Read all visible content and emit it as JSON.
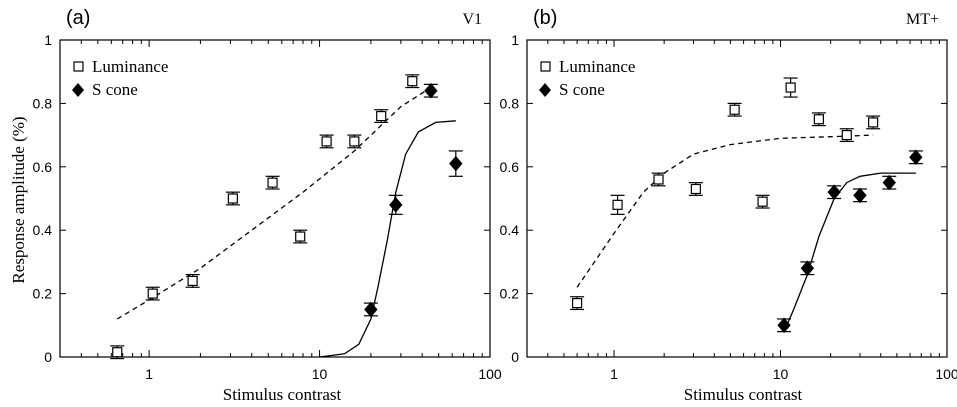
{
  "figure": {
    "ylabel": "Response amplitude (%)",
    "xlabel": "Stimulus contrast"
  },
  "chart_data": [
    {
      "type": "scatter",
      "panel_label": "(a)",
      "region_label": "V1",
      "xlabel": "Stimulus contrast",
      "ylabel": "Response amplitude (%)",
      "xscale": "log",
      "xlim": [
        0.3,
        100
      ],
      "ylim": [
        0,
        1
      ],
      "xticks": [
        1,
        10,
        100
      ],
      "xtick_labels": [
        "1",
        "10",
        "100"
      ],
      "yticks": [
        0,
        0.2,
        0.4,
        0.6,
        0.8,
        1
      ],
      "ytick_labels": [
        "0",
        "0.2",
        "0.4",
        "0.6",
        "0.8",
        "1"
      ],
      "legend": "top-left",
      "series": [
        {
          "name": "Luminance",
          "marker": "open-square",
          "x": [
            0.65,
            1.05,
            1.8,
            3.1,
            5.3,
            7.7,
            11,
            16,
            23,
            35
          ],
          "y": [
            0.015,
            0.2,
            0.24,
            0.5,
            0.55,
            0.38,
            0.68,
            0.68,
            0.76,
            0.87
          ],
          "err": [
            0.02,
            0.02,
            0.02,
            0.02,
            0.02,
            0.02,
            0.02,
            0.02,
            0.02,
            0.02
          ],
          "fit": {
            "style": "dashed",
            "x": [
              0.65,
              1,
              2,
              4,
              8,
              16,
              30,
              45
            ],
            "y": [
              0.12,
              0.18,
              0.28,
              0.4,
              0.52,
              0.65,
              0.79,
              0.85
            ]
          }
        },
        {
          "name": "S cone",
          "marker": "filled-diamond",
          "x": [
            20,
            28,
            45,
            63
          ],
          "y": [
            0.15,
            0.48,
            0.84,
            0.61
          ],
          "err": [
            0.02,
            0.03,
            0.02,
            0.04
          ],
          "fit": {
            "style": "solid",
            "x": [
              10,
              14,
              17,
              20,
              22,
              25,
              28,
              32,
              38,
              48,
              63
            ],
            "y": [
              0.0,
              0.01,
              0.04,
              0.12,
              0.22,
              0.37,
              0.52,
              0.64,
              0.71,
              0.74,
              0.745
            ]
          }
        }
      ]
    },
    {
      "type": "scatter",
      "panel_label": "(b)",
      "region_label": "MT+",
      "xlabel": "Stimulus contrast",
      "ylabel": "",
      "xscale": "log",
      "xlim": [
        0.3,
        100
      ],
      "ylim": [
        0,
        1
      ],
      "xticks": [
        1,
        10,
        100
      ],
      "xtick_labels": [
        "1",
        "10",
        "100"
      ],
      "yticks": [
        0,
        0.2,
        0.4,
        0.6,
        0.8,
        1
      ],
      "ytick_labels": [
        "0",
        "0.2",
        "0.4",
        "0.6",
        "0.8",
        "1"
      ],
      "legend": "top-left",
      "series": [
        {
          "name": "Luminance",
          "marker": "open-square",
          "x": [
            0.6,
            1.05,
            1.85,
            3.1,
            5.3,
            7.8,
            11.5,
            17,
            25,
            36
          ],
          "y": [
            0.17,
            0.48,
            0.56,
            0.53,
            0.78,
            0.49,
            0.85,
            0.75,
            0.7,
            0.74
          ],
          "err": [
            0.02,
            0.03,
            0.02,
            0.02,
            0.02,
            0.02,
            0.03,
            0.02,
            0.02,
            0.02
          ],
          "fit": {
            "style": "dashed",
            "x": [
              0.6,
              1,
              1.5,
              2,
              3,
              5,
              10,
              20,
              36
            ],
            "y": [
              0.22,
              0.39,
              0.52,
              0.58,
              0.64,
              0.67,
              0.69,
              0.695,
              0.7
            ]
          }
        },
        {
          "name": "S cone",
          "marker": "filled-diamond",
          "x": [
            10.5,
            14.5,
            21,
            30,
            45,
            65
          ],
          "y": [
            0.1,
            0.28,
            0.52,
            0.51,
            0.55,
            0.63
          ],
          "err": [
            0.02,
            0.02,
            0.02,
            0.02,
            0.02,
            0.02
          ],
          "fit": {
            "style": "solid",
            "x": [
              10.5,
              12,
              14.5,
              17,
              21,
              25,
              30,
              40,
              65
            ],
            "y": [
              0.08,
              0.15,
              0.26,
              0.38,
              0.5,
              0.55,
              0.57,
              0.58,
              0.58
            ]
          }
        }
      ]
    }
  ]
}
